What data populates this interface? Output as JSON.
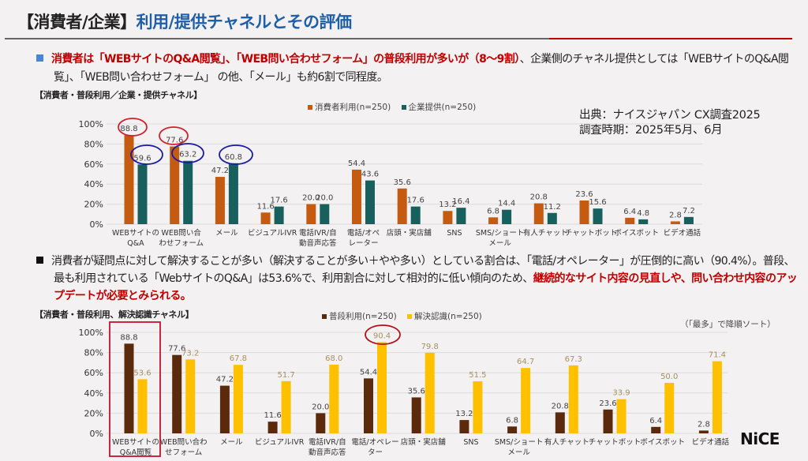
{
  "title": {
    "prefix": "【消費者/企業】",
    "main": "利用/提供チャネルとその評価"
  },
  "bullet1": {
    "highlight": "消費者は「WEBサイトのQ&A閲覧」、「WEB問い合わせフォーム」の普段利用が多いが（8～9割）",
    "rest1": "、企業側のチャネル提供としては「WEBサイトのQ&A閲覧」、「WEB問い合わせフォーム」 の他、「メール」も約6割で同程度。"
  },
  "chart1_subtitle": "【消費者・普段利用／企業・提供チャネル】",
  "source": {
    "line1": "出典：ナイスジャパン CX調査2025",
    "line2": "調査時期：2025年5月、6月"
  },
  "bullet2": {
    "text": "消費者が疑問点に対して解決することが多い（解決することが多い＋やや多い）としている割合は、「電話/オペレーター」が圧倒的に高い（90.4%）。普段、最も利用されている「WebサイトのQ&A」は53.6%で、利用割合に対して相対的に低い傾向のため、",
    "highlight": "継続的なサイト内容の見直しや、問い合わせ内容のアップデートが必要とみられる。"
  },
  "chart2_subtitle": "【消費者・普段利用、解決認識チャネル】",
  "chart2_note": "（「最多」で降順ソート）",
  "logo": "NiCE",
  "colors": {
    "orange": "#c55a11",
    "teal": "#17605e",
    "brown": "#5b2a0c",
    "gold": "#ffc000",
    "title_blue": "#1f5fa8",
    "accent_red": "#c00000",
    "bullet_blue": "#4a86d0"
  },
  "chart_data": [
    {
      "type": "bar",
      "ylim": [
        0,
        100
      ],
      "yticks": [
        "0%",
        "20%",
        "40%",
        "60%",
        "80%",
        "100%"
      ],
      "grid": true,
      "legend": "top",
      "categories": [
        "WEBサイトの\nQ&A",
        "WEB問い合\nわせフォーム",
        "メール",
        "ビジュアルIVR",
        "電話IVR/自\n動音声応答",
        "電話/オペ\nレーター",
        "店頭・実店舗",
        "SNS",
        "SMS/ショート\nメール",
        "有人チャット",
        "チャットボット",
        "ボイスボット",
        "ビデオ通話"
      ],
      "series": [
        {
          "name": "消費者利用(n=250)",
          "values": [
            88.8,
            77.6,
            47.2,
            11.6,
            20.0,
            54.4,
            35.6,
            13.2,
            6.8,
            20.8,
            23.6,
            6.4,
            2.8
          ]
        },
        {
          "name": "企業提供(n=250)",
          "values": [
            59.6,
            63.2,
            60.8,
            17.6,
            20.0,
            43.6,
            17.6,
            16.4,
            14.4,
            11.2,
            15.6,
            4.8,
            7.2
          ]
        }
      ]
    },
    {
      "type": "bar",
      "ylim": [
        0,
        100
      ],
      "yticks": [
        "0%",
        "20%",
        "40%",
        "60%",
        "80%",
        "100%"
      ],
      "grid": true,
      "legend": "top",
      "categories": [
        "WEBサイトの\nQ&A閲覧",
        "WEB問い合わ\nせフォーム",
        "メール",
        "ビジュアルIVR",
        "電話IVR/自\n動音声応答",
        "電話/オペレー\nター",
        "店頭・実店舗",
        "SNS",
        "SMS/ショート\nメール",
        "有人チャット",
        "チャットボット",
        "ボイスボット",
        "ビデオ通話"
      ],
      "series": [
        {
          "name": "普段利用(n=250)",
          "values": [
            88.8,
            77.6,
            47.2,
            11.6,
            20.0,
            54.4,
            35.6,
            13.2,
            6.8,
            20.8,
            23.6,
            6.4,
            2.8
          ]
        },
        {
          "name": "解決認識(n=250)",
          "values": [
            53.6,
            73.2,
            67.8,
            51.7,
            68.0,
            90.4,
            79.8,
            51.5,
            64.7,
            67.3,
            33.9,
            50.0,
            71.4
          ]
        }
      ]
    }
  ]
}
